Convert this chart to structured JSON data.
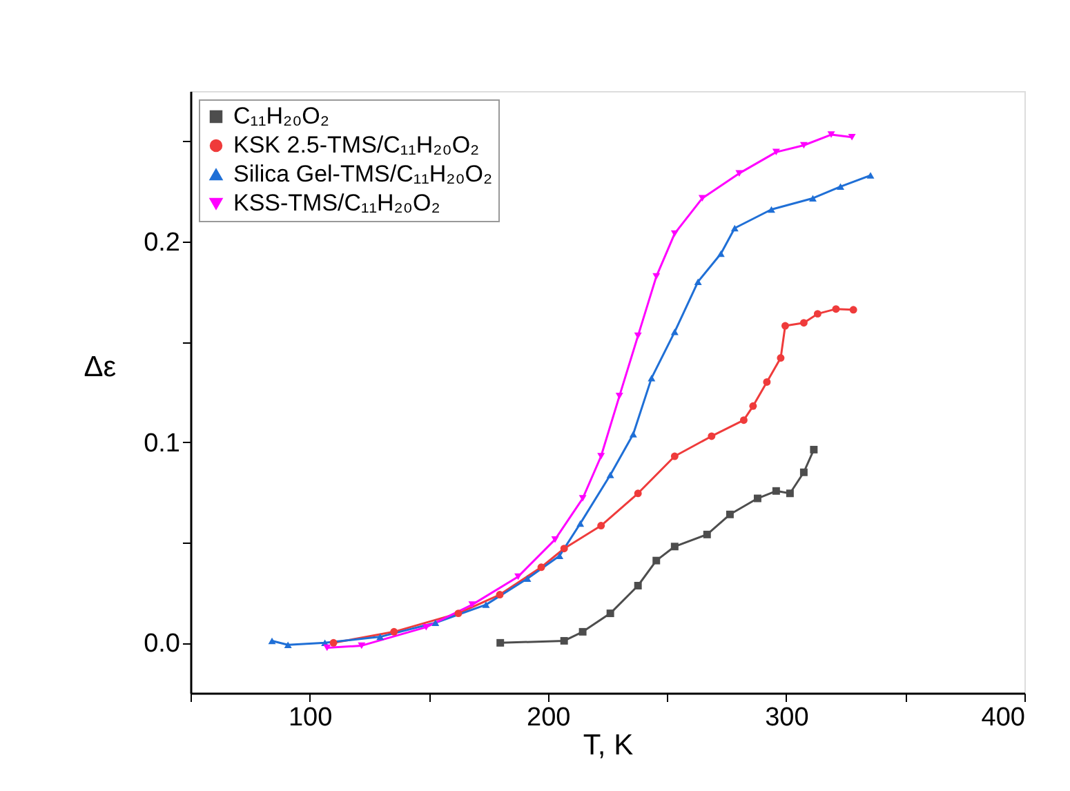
{
  "chart_data": {
    "type": "line",
    "xlabel": "T, K",
    "ylabel": "Δε",
    "xlim": [
      50,
      400
    ],
    "ylim": [
      -0.025,
      0.275
    ],
    "xticks": [
      {
        "value": 50,
        "label": null
      },
      100,
      {
        "value": 150,
        "label": null
      },
      200,
      {
        "value": 250,
        "label": null
      },
      300,
      {
        "value": 350,
        "label": null
      },
      400
    ],
    "yticks": [
      {
        "value": 0,
        "label": "0.0"
      },
      {
        "value": 0.05,
        "label": null
      },
      0.1,
      {
        "value": 0.15,
        "label": null
      },
      0.2,
      {
        "value": 0.25,
        "label": null
      }
    ],
    "grid": false,
    "legend": "top left",
    "line_style": "solid",
    "series": [
      {
        "name": "C₁₁H₂₀O₂",
        "color": "#4d4d4d",
        "marker": "square",
        "x": [
          180,
          206.8,
          214.6,
          226.2,
          237.8,
          245.5,
          253.2,
          266.8,
          276.4,
          288,
          295.8,
          301.6,
          307.4,
          311.6
        ],
        "values": [
          0.0,
          0.001,
          0.0055,
          0.0147,
          0.0285,
          0.041,
          0.048,
          0.054,
          0.064,
          0.072,
          0.0757,
          0.0745,
          0.085,
          0.0963
        ]
      },
      {
        "name": "KSK 2.5-TMS/C₁₁H₂₀O₂",
        "color": "#ef3b3b",
        "marker": "circle",
        "x": [
          110,
          135.4,
          162.4,
          179.8,
          197.2,
          206.8,
          222.3,
          237.8,
          253.2,
          268.7,
          282.2,
          286.1,
          291.9,
          297.7,
          299.6,
          307.4,
          313.2,
          320.9,
          328.2
        ],
        "values": [
          0.0,
          0.0055,
          0.0147,
          0.024,
          0.0377,
          0.047,
          0.0584,
          0.0745,
          0.093,
          0.103,
          0.111,
          0.118,
          0.13,
          0.142,
          0.158,
          0.1595,
          0.164,
          0.1664,
          0.166
        ]
      },
      {
        "name": "Silica Gel-TMS/C₁₁H₂₀O₂",
        "color": "#1f6fd6",
        "marker": "triangle",
        "x": [
          84.2,
          90.9,
          106.4,
          129.6,
          152.8,
          174.0,
          191.4,
          204.9,
          213.6,
          226.2,
          235.8,
          243.5,
          253.2,
          263,
          272.6,
          278.4,
          293.8,
          311.2,
          322.8,
          335.4
        ],
        "values": [
          0.001,
          -0.001,
          0.0,
          0.003,
          0.01,
          0.019,
          0.032,
          0.0434,
          0.0595,
          0.0837,
          0.104,
          0.132,
          0.155,
          0.18,
          0.194,
          0.2067,
          0.216,
          0.2216,
          0.2274,
          0.233
        ]
      },
      {
        "name": "KSS-TMS/C₁₁H₂₀O₂",
        "color": "#ff00ff",
        "marker": "triangle-down",
        "x": [
          107.3,
          121.8,
          148.9,
          168.2,
          187.5,
          203,
          214.6,
          222.3,
          230,
          237.8,
          245.5,
          253.2,
          264.8,
          280.3,
          295.8,
          307.4,
          318.9,
          327.6
        ],
        "values": [
          -0.0025,
          -0.0014,
          0.0078,
          0.019,
          0.033,
          0.0515,
          0.072,
          0.093,
          0.123,
          0.153,
          0.1826,
          0.204,
          0.2216,
          0.234,
          0.2446,
          0.248,
          0.2533,
          0.252
        ]
      }
    ]
  }
}
